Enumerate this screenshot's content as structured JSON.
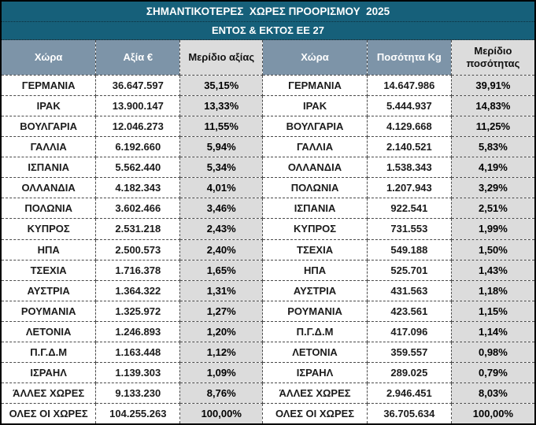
{
  "title": "ΣΗΜΑΝΤΙΚΟΤΕΡΕΣ  ΧΩΡΕΣ ΠΡΟΟΡΙΣΜΟΥ  2025",
  "subtitle": "ΕΝΤΟΣ & ΕΚΤΟΣ ΕΕ 27",
  "table": {
    "columns": [
      "Χώρα",
      "Αξία €",
      "Μερίδιο αξίας",
      "Χώρα",
      "Ποσότητα Kg",
      "Μερίδιο ποσότητας"
    ],
    "rows": [
      [
        "ΓΕΡΜΑΝΙΑ",
        "36.647.597",
        "35,15%",
        "ΓΕΡΜΑΝΙΑ",
        "14.647.986",
        "39,91%"
      ],
      [
        "ΙΡΑΚ",
        "13.900.147",
        "13,33%",
        "ΙΡΑΚ",
        "5.444.937",
        "14,83%"
      ],
      [
        "ΒΟΥΛΓΑΡΙΑ",
        "12.046.273",
        "11,55%",
        "ΒΟΥΛΓΑΡΙΑ",
        "4.129.668",
        "11,25%"
      ],
      [
        "ΓΑΛΛΙΑ",
        "6.192.660",
        "5,94%",
        "ΓΑΛΛΙΑ",
        "2.140.521",
        "5,83%"
      ],
      [
        "ΙΣΠΑΝΙΑ",
        "5.562.440",
        "5,34%",
        "ΟΛΛΑΝΔΙΑ",
        "1.538.343",
        "4,19%"
      ],
      [
        "ΟΛΛΑΝΔΙΑ",
        "4.182.343",
        "4,01%",
        "ΠΟΛΩΝΙΑ",
        "1.207.943",
        "3,29%"
      ],
      [
        "ΠΟΛΩΝΙΑ",
        "3.602.466",
        "3,46%",
        "ΙΣΠΑΝΙΑ",
        "922.541",
        "2,51%"
      ],
      [
        "ΚΥΠΡΟΣ",
        "2.531.218",
        "2,43%",
        "ΚΥΠΡΟΣ",
        "731.553",
        "1,99%"
      ],
      [
        "ΗΠΑ",
        "2.500.573",
        "2,40%",
        "ΤΣΕΧΙΑ",
        "549.188",
        "1,50%"
      ],
      [
        "ΤΣΕΧΙΑ",
        "1.716.378",
        "1,65%",
        "ΗΠΑ",
        "525.701",
        "1,43%"
      ],
      [
        "ΑΥΣΤΡΙΑ",
        "1.364.322",
        "1,31%",
        "ΑΥΣΤΡΙΑ",
        "431.563",
        "1,18%"
      ],
      [
        "ΡΟΥΜΑΝΙΑ",
        "1.325.972",
        "1,27%",
        "ΡΟΥΜΑΝΙΑ",
        "423.561",
        "1,15%"
      ],
      [
        "ΛΕΤΟΝΙΑ",
        "1.246.893",
        "1,20%",
        "Π.Γ.Δ.Μ",
        "417.096",
        "1,14%"
      ],
      [
        "Π.Γ.Δ.Μ",
        "1.163.448",
        "1,12%",
        "ΛΕΤΟΝΙΑ",
        "359.557",
        "0,98%"
      ],
      [
        "ΙΣΡΑΗΛ",
        "1.139.303",
        "1,09%",
        "ΙΣΡΑΗΛ",
        "289.025",
        "0,79%"
      ],
      [
        "ΆΛΛΕΣ ΧΩΡΕΣ",
        "9.133.230",
        "8,76%",
        "ΆΛΛΕΣ ΧΩΡΕΣ",
        "2.946.451",
        "8,03%"
      ]
    ],
    "total_row": [
      "ΟΛΕΣ ΟΙ ΧΩΡΕΣ",
      "104.255.263",
      "100,00%",
      "ΟΛΕΣ ΟΙ ΧΩΡΕΣ",
      "36.705.634",
      "100,00%"
    ]
  },
  "colors": {
    "teal_header": "#16607A",
    "column_header": "#7D94A8",
    "share_cell_bg": "#DCDCDC",
    "text_dark": "#1B1B1B"
  }
}
